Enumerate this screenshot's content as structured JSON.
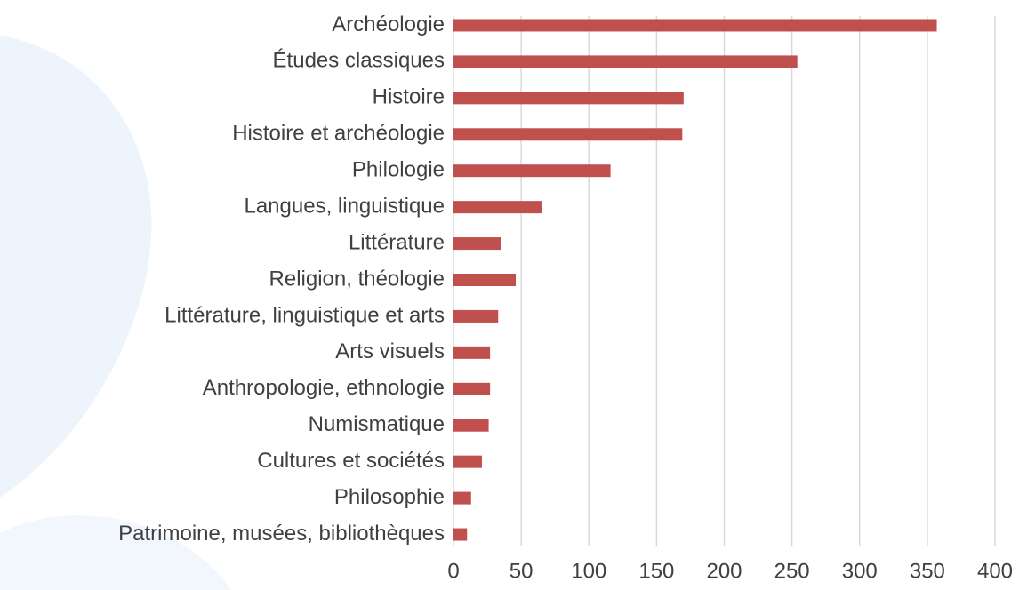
{
  "chart_data": {
    "type": "barh",
    "categories": [
      "Archéologie",
      "Études classiques",
      "Histoire",
      "Histoire et archéologie",
      "Philologie",
      "Langues,  linguistique",
      "Littérature",
      "Religion, théologie",
      "Littérature, linguistique et arts",
      "Arts visuels",
      "Anthropologie, ethnologie",
      "Numismatique",
      "Cultures et sociétés",
      "Philosophie",
      "Patrimoine, musées, bibliothèques"
    ],
    "values": [
      357,
      254,
      170,
      169,
      116,
      65,
      35,
      46,
      33,
      27,
      27,
      26,
      21,
      13,
      10
    ],
    "color": "#c0504d",
    "xlim": [
      0,
      400
    ],
    "xticks": [
      0,
      50,
      100,
      150,
      200,
      250,
      300,
      350,
      400
    ],
    "grid": true
  }
}
